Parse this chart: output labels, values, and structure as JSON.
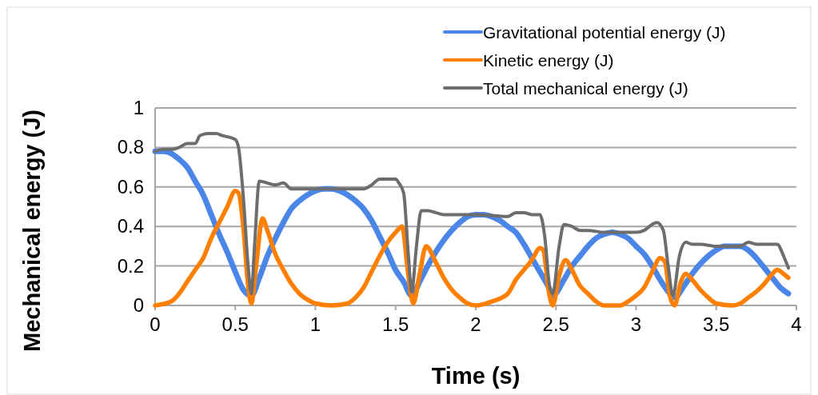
{
  "chart_data": {
    "type": "line",
    "xlabel": "Time (s)",
    "ylabel": "Mechanical energy (J)",
    "xlim": [
      0,
      4
    ],
    "xticks": [
      0,
      0.5,
      1,
      1.5,
      2,
      2.5,
      3,
      3.5,
      4
    ],
    "ylim": [
      0,
      1
    ],
    "yticks": [
      0,
      0.2,
      0.4,
      0.6,
      0.8,
      1
    ],
    "grid": "y",
    "legend": "top right",
    "marker": "none",
    "line_style": "solid",
    "series": [
      {
        "name": "Gravitational potential energy (J)",
        "color": "#4a86e8",
        "x": [
          0,
          0.05,
          0.1,
          0.15,
          0.2,
          0.25,
          0.3,
          0.35,
          0.4,
          0.45,
          0.5,
          0.55,
          0.6,
          0.65,
          0.7,
          0.75,
          0.8,
          0.85,
          0.9,
          0.95,
          1.0,
          1.05,
          1.1,
          1.15,
          1.2,
          1.25,
          1.3,
          1.35,
          1.4,
          1.45,
          1.5,
          1.55,
          1.6,
          1.65,
          1.7,
          1.75,
          1.8,
          1.85,
          1.9,
          1.95,
          2.0,
          2.05,
          2.1,
          2.15,
          2.2,
          2.25,
          2.3,
          2.35,
          2.4,
          2.45,
          2.48,
          2.55,
          2.6,
          2.65,
          2.7,
          2.75,
          2.8,
          2.85,
          2.9,
          2.95,
          3.0,
          3.05,
          3.1,
          3.15,
          3.2,
          3.24,
          3.3,
          3.35,
          3.4,
          3.45,
          3.5,
          3.55,
          3.6,
          3.65,
          3.7,
          3.75,
          3.8,
          3.85,
          3.9,
          3.95
        ],
        "values": [
          0.78,
          0.78,
          0.77,
          0.74,
          0.7,
          0.63,
          0.56,
          0.46,
          0.36,
          0.27,
          0.17,
          0.08,
          0.05,
          0.14,
          0.25,
          0.34,
          0.42,
          0.49,
          0.53,
          0.56,
          0.58,
          0.59,
          0.59,
          0.58,
          0.56,
          0.53,
          0.49,
          0.43,
          0.35,
          0.27,
          0.18,
          0.12,
          0.05,
          0.12,
          0.2,
          0.27,
          0.33,
          0.38,
          0.42,
          0.45,
          0.46,
          0.46,
          0.45,
          0.43,
          0.4,
          0.37,
          0.31,
          0.24,
          0.17,
          0.1,
          0.05,
          0.13,
          0.2,
          0.25,
          0.3,
          0.34,
          0.36,
          0.37,
          0.36,
          0.34,
          0.3,
          0.26,
          0.2,
          0.13,
          0.07,
          0.04,
          0.1,
          0.16,
          0.21,
          0.25,
          0.28,
          0.3,
          0.3,
          0.3,
          0.28,
          0.24,
          0.19,
          0.14,
          0.09,
          0.06
        ]
      },
      {
        "name": "Kinetic energy (J)",
        "color": "#ff7f00",
        "x": [
          0,
          0.1,
          0.15,
          0.2,
          0.25,
          0.3,
          0.35,
          0.4,
          0.45,
          0.5,
          0.52,
          0.55,
          0.58,
          0.6,
          0.63,
          0.67,
          0.7,
          0.75,
          0.8,
          0.85,
          0.9,
          0.95,
          1.0,
          1.1,
          1.2,
          1.25,
          1.3,
          1.35,
          1.4,
          1.45,
          1.5,
          1.54,
          1.58,
          1.61,
          1.65,
          1.69,
          1.75,
          1.8,
          1.85,
          1.9,
          1.95,
          2.0,
          2.1,
          2.2,
          2.25,
          2.3,
          2.35,
          2.4,
          2.42,
          2.46,
          2.48,
          2.52,
          2.56,
          2.6,
          2.65,
          2.7,
          2.75,
          2.8,
          2.9,
          2.95,
          3.0,
          3.05,
          3.1,
          3.15,
          3.18,
          3.21,
          3.24,
          3.28,
          3.31,
          3.35,
          3.4,
          3.45,
          3.5,
          3.6,
          3.65,
          3.7,
          3.75,
          3.8,
          3.85,
          3.88,
          3.92,
          3.95
        ],
        "values": [
          0,
          0.02,
          0.06,
          0.12,
          0.18,
          0.24,
          0.34,
          0.42,
          0.5,
          0.58,
          0.57,
          0.4,
          0.1,
          0.01,
          0.2,
          0.44,
          0.38,
          0.26,
          0.18,
          0.11,
          0.06,
          0.03,
          0.01,
          0,
          0.01,
          0.04,
          0.09,
          0.17,
          0.25,
          0.32,
          0.37,
          0.4,
          0.15,
          0.01,
          0.16,
          0.3,
          0.22,
          0.14,
          0.08,
          0.04,
          0.01,
          0,
          0.02,
          0.06,
          0.13,
          0.18,
          0.23,
          0.29,
          0.28,
          0.05,
          0,
          0.15,
          0.23,
          0.18,
          0.1,
          0.06,
          0.02,
          0,
          0,
          0.02,
          0.05,
          0.09,
          0.17,
          0.24,
          0.22,
          0.05,
          0,
          0.12,
          0.16,
          0.13,
          0.08,
          0.04,
          0.01,
          0,
          0.01,
          0.04,
          0.07,
          0.11,
          0.16,
          0.18,
          0.16,
          0.14
        ]
      },
      {
        "name": "Total mechanical energy (J)",
        "color": "#6d6d6d",
        "x": [
          0,
          0.05,
          0.1,
          0.15,
          0.2,
          0.25,
          0.28,
          0.33,
          0.38,
          0.42,
          0.5,
          0.52,
          0.55,
          0.58,
          0.6,
          0.62,
          0.65,
          0.7,
          0.75,
          0.8,
          0.85,
          0.9,
          0.95,
          1.0,
          1.2,
          1.3,
          1.35,
          1.4,
          1.5,
          1.52,
          1.55,
          1.58,
          1.6,
          1.63,
          1.66,
          1.7,
          1.75,
          1.8,
          1.9,
          2.0,
          2.2,
          2.25,
          2.3,
          2.35,
          2.4,
          2.43,
          2.46,
          2.48,
          2.52,
          2.55,
          2.6,
          2.65,
          2.7,
          2.8,
          2.9,
          3.0,
          3.05,
          3.1,
          3.13,
          3.17,
          3.2,
          3.23,
          3.27,
          3.31,
          3.35,
          3.4,
          3.5,
          3.6,
          3.65,
          3.7,
          3.75,
          3.8,
          3.85,
          3.88,
          3.92,
          3.95
        ],
        "values": [
          0.78,
          0.79,
          0.79,
          0.8,
          0.82,
          0.82,
          0.86,
          0.87,
          0.87,
          0.86,
          0.84,
          0.8,
          0.55,
          0.2,
          0.06,
          0.3,
          0.63,
          0.62,
          0.61,
          0.62,
          0.59,
          0.59,
          0.59,
          0.59,
          0.59,
          0.59,
          0.61,
          0.64,
          0.64,
          0.62,
          0.57,
          0.25,
          0.07,
          0.3,
          0.48,
          0.48,
          0.47,
          0.46,
          0.46,
          0.46,
          0.45,
          0.47,
          0.47,
          0.46,
          0.46,
          0.35,
          0.1,
          0.06,
          0.3,
          0.41,
          0.4,
          0.38,
          0.38,
          0.37,
          0.37,
          0.37,
          0.38,
          0.41,
          0.42,
          0.38,
          0.2,
          0.05,
          0.25,
          0.32,
          0.31,
          0.31,
          0.3,
          0.3,
          0.3,
          0.32,
          0.31,
          0.31,
          0.31,
          0.31,
          0.25,
          0.19
        ]
      }
    ]
  }
}
